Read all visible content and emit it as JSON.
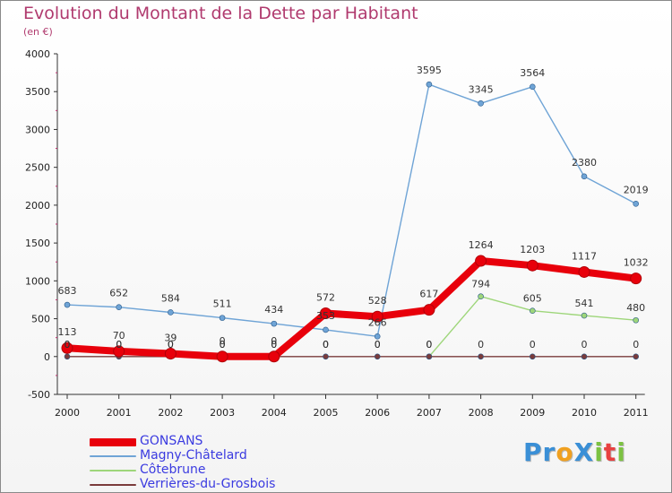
{
  "title": "Evolution du Montant de la Dette par Habitant",
  "subtitle": "(en €)",
  "logo": {
    "text": "Proxiti",
    "letters": [
      {
        "ch": "P",
        "color": "#3a8fd6"
      },
      {
        "ch": "r",
        "color": "#3a8fd6"
      },
      {
        "ch": "o",
        "color": "#f0a020"
      },
      {
        "ch": "X",
        "color": "#3a8fd6"
      },
      {
        "ch": "i",
        "color": "#7cc242"
      },
      {
        "ch": "t",
        "color": "#e84040"
      },
      {
        "ch": "i",
        "color": "#7cc242"
      }
    ]
  },
  "chart_data": {
    "type": "line",
    "title": "Evolution du Montant de la Dette par Habitant",
    "subtitle": "(en €)",
    "xlabel": "",
    "ylabel": "",
    "x": [
      "2000",
      "2001",
      "2002",
      "2003",
      "2004",
      "2005",
      "2006",
      "2007",
      "2008",
      "2009",
      "2010",
      "2011"
    ],
    "ylim": [
      -500,
      4000
    ],
    "yticks": [
      -500,
      0,
      500,
      1000,
      1500,
      2000,
      2500,
      3000,
      3500,
      4000
    ],
    "grid": false,
    "legend_position": "bottom-left",
    "series": [
      {
        "name": "GONSANS",
        "color": "#e8000b",
        "values": [
          113,
          70,
          39,
          0,
          0,
          572,
          528,
          617,
          1264,
          1203,
          1117,
          1032
        ],
        "labels": [
          "113",
          "70",
          "39",
          "0",
          "0",
          "572",
          "528",
          "617",
          "1264",
          "1203",
          "1117",
          "1032"
        ]
      },
      {
        "name": "Magny-Châtelard",
        "color": "#6fa4d6",
        "values": [
          683,
          652,
          584,
          511,
          434,
          353,
          266,
          3595,
          3345,
          3564,
          2380,
          2019
        ],
        "labels": [
          "683",
          "652",
          "584",
          "511",
          "434",
          "353",
          "266",
          "3595",
          "3345",
          "3564",
          "2380",
          "2019"
        ]
      },
      {
        "name": "Côtebrune",
        "color": "#9ed67a",
        "values": [
          null,
          null,
          null,
          null,
          null,
          null,
          null,
          0,
          794,
          605,
          541,
          480
        ],
        "labels": [
          "0",
          "0",
          "0",
          "0",
          "0",
          "0",
          "0",
          "0",
          "794",
          "605",
          "541",
          "480"
        ]
      },
      {
        "name": "Verrières-du-Grosbois",
        "color": "#7a3b3b",
        "values": [
          0,
          0,
          0,
          0,
          0,
          0,
          0,
          0,
          0,
          0,
          0,
          0
        ],
        "labels": [
          "0",
          "0",
          "0",
          "0",
          "0",
          "0",
          "0",
          "0",
          "0",
          "0",
          "0",
          "0"
        ]
      }
    ]
  }
}
